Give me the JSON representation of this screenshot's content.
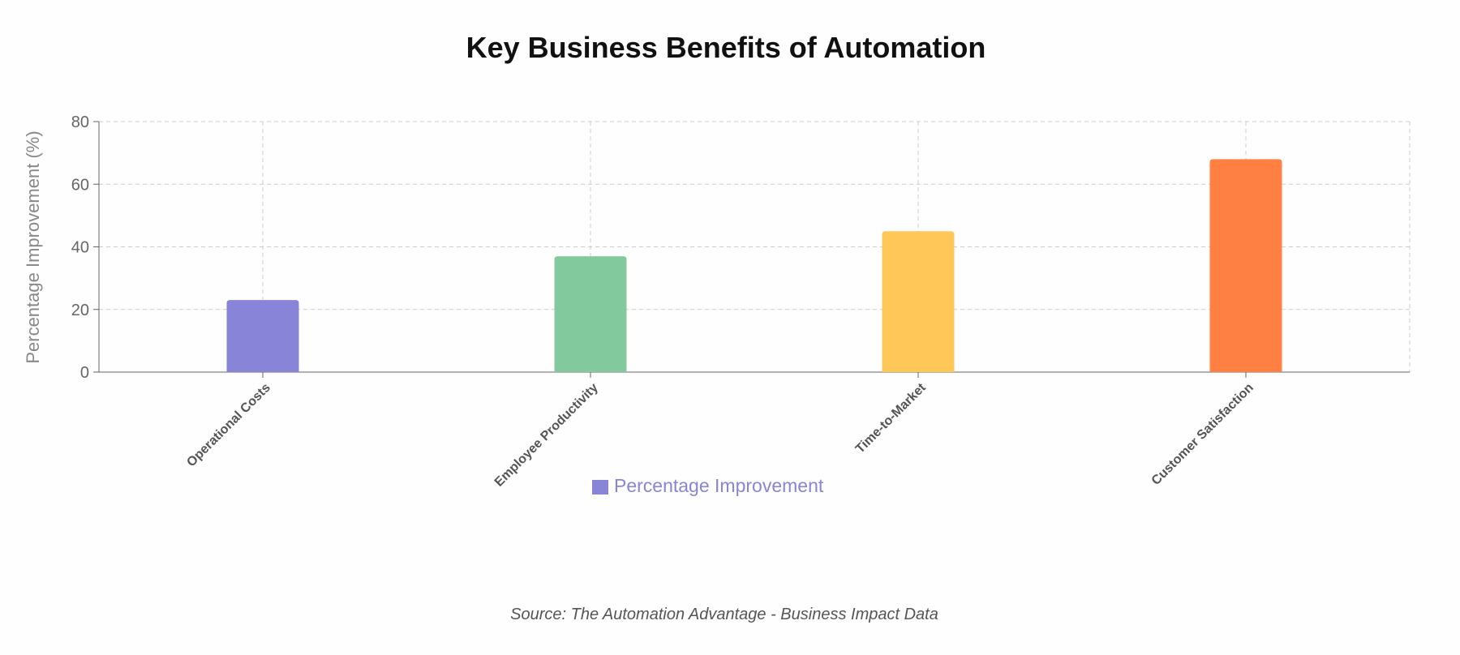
{
  "chart_data": {
    "type": "bar",
    "title": "Key Business Benefits of Automation",
    "categories": [
      "Operational Costs",
      "Employee Productivity",
      "Time-to-Market",
      "Customer Satisfaction"
    ],
    "series": [
      {
        "name": "Percentage Improvement",
        "values": [
          23,
          37,
          45,
          68
        ],
        "colors": [
          "#8884d8",
          "#82ca9d",
          "#ffc658",
          "#ff8042"
        ]
      }
    ],
    "xlabel": "",
    "ylabel": "Percentage Improvement (%)",
    "ylim": [
      0,
      80
    ],
    "yticks": [
      0,
      20,
      40,
      60,
      80
    ],
    "grid": true,
    "legend_position": "bottom",
    "legend_color": "#8884d8"
  },
  "footer": {
    "source": "Source: The Automation Advantage - Business Impact Data"
  }
}
